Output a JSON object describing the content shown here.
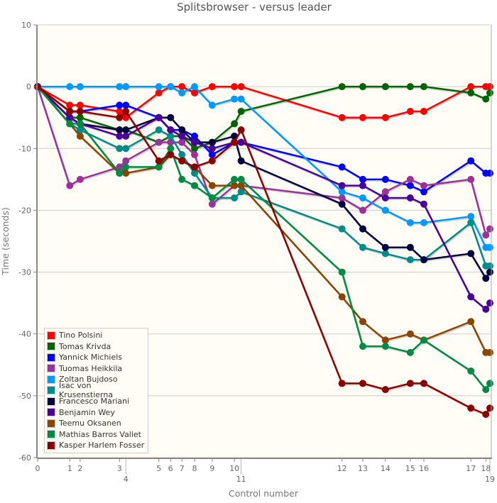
{
  "chart_data": {
    "type": "line",
    "title": "Splitsbrowser - versus leader",
    "xlabel": "Control number",
    "ylabel": "Time (seconds)",
    "ylim": [
      -60,
      10
    ],
    "yticks": [
      10,
      0,
      -10,
      -20,
      -30,
      -40,
      -50,
      -60
    ],
    "grid": true,
    "legend_position": "bottom-left",
    "x_units": "relative leader elapsed time (0-1000, estimated)",
    "controls": [
      {
        "label": "0",
        "x": 0
      },
      {
        "label": "1",
        "x": 71
      },
      {
        "label": "2",
        "x": 94
      },
      {
        "label": "3",
        "x": 181
      },
      {
        "label": "4",
        "x": 195
      },
      {
        "label": "5",
        "x": 268
      },
      {
        "label": "6",
        "x": 294
      },
      {
        "label": "7",
        "x": 319
      },
      {
        "label": "8",
        "x": 347
      },
      {
        "label": "9",
        "x": 386
      },
      {
        "label": "10",
        "x": 435
      },
      {
        "label": "11",
        "x": 450
      },
      {
        "label": "12",
        "x": 673
      },
      {
        "label": "13",
        "x": 719
      },
      {
        "label": "14",
        "x": 769
      },
      {
        "label": "15",
        "x": 824
      },
      {
        "label": "16",
        "x": 854
      },
      {
        "label": "17",
        "x": 958
      },
      {
        "label": "18",
        "x": 991
      },
      {
        "label": "19",
        "x": 1000
      }
    ],
    "series": [
      {
        "name": "Tino Polsini",
        "color": "#ff0000",
        "values": [
          0,
          -3,
          -3,
          -4,
          -5,
          -1,
          0,
          0,
          -1,
          0,
          0,
          0,
          -5,
          -5,
          -5,
          -4,
          -4,
          0,
          0,
          0
        ]
      },
      {
        "name": "Tomas Krivda",
        "color": "#006400",
        "values": [
          0,
          -5,
          -5,
          -7,
          -7,
          -9,
          -8,
          -8,
          -10,
          -9,
          -6,
          -4,
          0,
          0,
          0,
          0,
          0,
          -1,
          -2,
          -1
        ]
      },
      {
        "name": "Yannick Michiels",
        "color": "#0000ff",
        "values": [
          0,
          -4,
          -4,
          -3,
          -3,
          -5,
          -7,
          -7,
          -8,
          -11,
          -9,
          -9,
          -13,
          -15,
          -15,
          -16,
          -17,
          -12,
          -14,
          -14
        ]
      },
      {
        "name": "Tuomas Heikkila",
        "color": "#993399",
        "values": [
          0,
          -16,
          -15,
          -13,
          -12,
          -9,
          -9,
          -9,
          -11,
          -19,
          -16,
          -16,
          -18,
          -20,
          -17,
          -15,
          -16,
          -15,
          -24,
          -23
        ]
      },
      {
        "name": "Zoltan Bujdoso",
        "color": "#0099ff",
        "values": [
          0,
          0,
          0,
          0,
          0,
          0,
          0,
          -1,
          0,
          -3,
          -2,
          -2,
          -17,
          -18,
          -20,
          -22,
          -22,
          -21,
          -26,
          -26
        ]
      },
      {
        "name": "Isac von Krusenstierna",
        "color": "#008b8b",
        "values": [
          0,
          -6,
          -7,
          -10,
          -10,
          -7,
          -8,
          -11,
          -14,
          -18,
          -18,
          -17,
          -23,
          -26,
          -27,
          -28,
          -28,
          -22,
          -29,
          -29
        ]
      },
      {
        "name": "Francesco Mariani",
        "color": "#000040",
        "values": [
          0,
          -5,
          -6,
          -7,
          -7,
          -5,
          -5,
          -7,
          -9,
          -9,
          -8,
          -12,
          -19,
          -23,
          -26,
          -26,
          -28,
          -27,
          -31,
          -30
        ]
      },
      {
        "name": "Benjamin Wey",
        "color": "#4b0096",
        "values": [
          0,
          -5,
          -6,
          -8,
          -8,
          -5,
          -7,
          -8,
          -9,
          -10,
          -9,
          -9,
          -16,
          -16,
          -18,
          -18,
          -19,
          -34,
          -36,
          -35
        ]
      },
      {
        "name": "Teemu Oksanen",
        "color": "#8b4500",
        "values": [
          0,
          -6,
          -8,
          -14,
          -14,
          -13,
          -11,
          -12,
          -13,
          -16,
          -16,
          -16,
          -34,
          -38,
          -41,
          -40,
          -41,
          -38,
          -43,
          -43
        ]
      },
      {
        "name": "Mathias Barros Vallet",
        "color": "#008b45",
        "values": [
          0,
          -6,
          -6,
          -14,
          -13,
          -13,
          -10,
          -15,
          -16,
          -18,
          -15,
          -15,
          -30,
          -42,
          -42,
          -43,
          -41,
          -46,
          -49,
          -48
        ]
      },
      {
        "name": "Kasper Harlem Fosser",
        "color": "#8b0000",
        "values": [
          0,
          -4,
          -4,
          -5,
          -4,
          -12,
          -11,
          -12,
          -13,
          -12,
          -9,
          -7,
          -48,
          -48,
          -49,
          -48,
          -48,
          -52,
          -53,
          -52
        ]
      }
    ]
  }
}
